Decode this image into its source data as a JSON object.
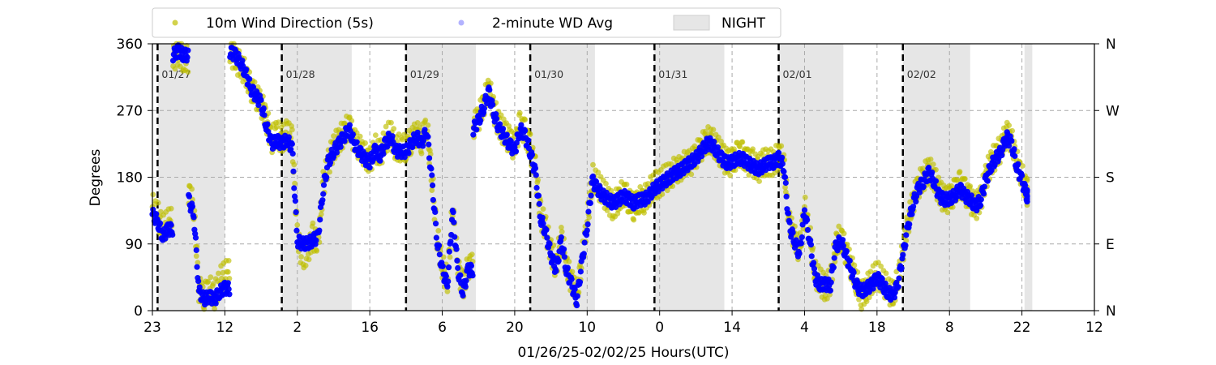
{
  "chart_data": {
    "type": "scatter",
    "xlabel": "01/26/25-02/02/25  Hours(UTC)",
    "ylabel": "Degrees",
    "ylim": [
      0,
      360
    ],
    "y_ticks": [
      0,
      90,
      180,
      270,
      360
    ],
    "y2_ticks": [
      "N",
      "E",
      "S",
      "W",
      "N"
    ],
    "x_ticks": [
      "23",
      "12",
      "2",
      "16",
      "6",
      "20",
      "10",
      "0",
      "14",
      "4",
      "18",
      "8",
      "22",
      "12"
    ],
    "grid": true,
    "grid_style": "dashed",
    "legend_position": "top-left",
    "legend": [
      {
        "label": "10m Wind Direction (5s)",
        "color": "#bfbf00",
        "kind": "point"
      },
      {
        "label": "2-minute WD Avg",
        "color": "#0000ff",
        "kind": "point"
      },
      {
        "label": "NIGHT",
        "color": "#d9d9d9",
        "kind": "shade"
      }
    ],
    "x_range_hours": [
      0,
      182
    ],
    "day_markers": [
      {
        "label": "01/27",
        "hour": 1
      },
      {
        "label": "01/28",
        "hour": 25
      },
      {
        "label": "01/29",
        "hour": 49
      },
      {
        "label": "01/30",
        "hour": 73
      },
      {
        "label": "01/31",
        "hour": 97
      },
      {
        "label": "02/01",
        "hour": 121
      },
      {
        "label": "02/02",
        "hour": 145
      }
    ],
    "night_periods_hours": [
      [
        1,
        14
      ],
      [
        25,
        38.5
      ],
      [
        49,
        62.5
      ],
      [
        73,
        85.5
      ],
      [
        97,
        110.5
      ],
      [
        121,
        133.5
      ],
      [
        145,
        158
      ],
      [
        168.5,
        170
      ]
    ],
    "series": [
      {
        "name": "10m Wind Direction (5s)",
        "color": "#bfbf00",
        "x_hours": [
          0,
          1,
          2,
          3,
          4,
          5,
          6,
          7,
          8,
          9,
          10,
          11,
          12,
          13,
          14,
          15,
          16,
          17,
          18,
          19,
          20,
          21,
          22,
          23,
          24,
          25,
          26,
          27,
          28,
          29,
          30,
          31,
          32,
          33,
          34,
          35,
          36,
          37,
          38,
          39,
          40,
          41,
          42,
          43,
          44,
          45,
          46,
          47,
          48,
          49,
          50,
          51,
          52,
          53,
          54,
          55,
          56,
          57,
          58,
          59,
          60,
          61,
          62,
          63,
          64,
          65,
          66,
          67,
          68,
          69,
          70,
          71,
          72,
          73,
          74,
          75,
          76,
          77,
          78,
          79,
          80,
          81,
          82,
          83,
          84,
          85,
          86,
          87,
          88,
          89,
          90,
          91,
          92,
          93,
          94,
          95,
          96,
          97,
          98,
          99,
          100,
          101,
          102,
          103,
          104,
          105,
          106,
          107,
          108,
          109,
          110,
          111,
          112,
          113,
          114,
          115,
          116,
          117,
          118,
          119,
          120,
          121,
          122,
          123,
          124,
          125,
          126,
          127,
          128,
          129,
          130,
          131,
          132,
          133,
          134,
          135,
          136,
          137,
          138,
          139,
          140,
          141,
          142,
          143,
          144,
          145,
          146,
          147,
          148,
          149,
          150,
          151,
          152,
          153,
          154,
          155,
          156,
          157,
          158,
          159,
          160,
          161,
          162,
          163,
          164,
          165,
          166,
          167,
          168,
          169
        ],
        "y_deg": [
          140,
          130,
          110,
          120,
          340,
          350,
          340,
          160,
          140,
          30,
          20,
          30,
          20,
          40,
          50,
          350,
          340,
          330,
          320,
          300,
          290,
          280,
          260,
          230,
          240,
          230,
          240,
          230,
          100,
          70,
          80,
          100,
          90,
          170,
          200,
          220,
          230,
          240,
          250,
          230,
          220,
          210,
          200,
          220,
          210,
          230,
          240,
          220,
          220,
          220,
          230,
          240,
          230,
          250,
          180,
          100,
          60,
          40,
          140,
          60,
          30,
          60,
          250,
          260,
          280,
          300,
          270,
          250,
          240,
          230,
          220,
          250,
          240,
          220,
          190,
          130,
          110,
          80,
          60,
          100,
          60,
          40,
          20,
          70,
          120,
          180,
          170,
          160,
          150,
          140,
          150,
          160,
          150,
          140,
          150,
          150,
          160,
          170,
          170,
          180,
          180,
          190,
          190,
          200,
          200,
          210,
          220,
          230,
          230,
          220,
          210,
          200,
          200,
          210,
          210,
          200,
          200,
          190,
          200,
          200,
          200,
          210,
          200,
          120,
          100,
          80,
          140,
          100,
          50,
          40,
          30,
          40,
          90,
          100,
          80,
          60,
          40,
          20,
          30,
          40,
          50,
          40,
          30,
          20,
          40,
          80,
          120,
          150,
          170,
          180,
          190,
          180,
          160,
          150,
          150,
          160,
          170,
          160,
          150,
          140,
          150,
          180,
          200,
          210,
          220,
          240,
          230,
          200,
          180,
          160
        ]
      },
      {
        "name": "2-minute WD Avg",
        "color": "#0000ff",
        "x_hours": [
          0,
          1,
          2,
          3,
          4,
          5,
          6,
          7,
          8,
          9,
          10,
          11,
          12,
          13,
          14,
          15,
          16,
          17,
          18,
          19,
          20,
          21,
          22,
          23,
          24,
          25,
          26,
          27,
          28,
          29,
          30,
          31,
          32,
          33,
          34,
          35,
          36,
          37,
          38,
          39,
          40,
          41,
          42,
          43,
          44,
          45,
          46,
          47,
          48,
          49,
          50,
          51,
          52,
          53,
          54,
          55,
          56,
          57,
          58,
          59,
          60,
          61,
          62,
          63,
          64,
          65,
          66,
          67,
          68,
          69,
          70,
          71,
          72,
          73,
          74,
          75,
          76,
          77,
          78,
          79,
          80,
          81,
          82,
          83,
          84,
          85,
          86,
          87,
          88,
          89,
          90,
          91,
          92,
          93,
          94,
          95,
          96,
          97,
          98,
          99,
          100,
          101,
          102,
          103,
          104,
          105,
          106,
          107,
          108,
          109,
          110,
          111,
          112,
          113,
          114,
          115,
          116,
          117,
          118,
          119,
          120,
          121,
          122,
          123,
          124,
          125,
          126,
          127,
          128,
          129,
          130,
          131,
          132,
          133,
          134,
          135,
          136,
          137,
          138,
          139,
          140,
          141,
          142,
          143,
          144,
          145,
          146,
          147,
          148,
          149,
          150,
          151,
          152,
          153,
          154,
          155,
          156,
          157,
          158,
          159,
          160,
          161,
          162,
          163,
          164,
          165,
          166,
          167,
          168,
          169
        ],
        "y_deg": [
          130,
          120,
          100,
          110,
          345,
          350,
          345,
          150,
          130,
          25,
          15,
          20,
          15,
          25,
          30,
          350,
          345,
          335,
          320,
          300,
          290,
          280,
          250,
          225,
          230,
          225,
          230,
          220,
          95,
          90,
          90,
          95,
          100,
          165,
          200,
          215,
          225,
          235,
          245,
          225,
          215,
          205,
          200,
          215,
          210,
          225,
          235,
          215,
          215,
          215,
          225,
          235,
          225,
          245,
          175,
          95,
          55,
          35,
          135,
          55,
          25,
          55,
          245,
          255,
          275,
          295,
          265,
          245,
          235,
          225,
          215,
          245,
          235,
          215,
          185,
          125,
          105,
          75,
          55,
          95,
          55,
          35,
          15,
          65,
          115,
          175,
          165,
          155,
          150,
          145,
          150,
          155,
          150,
          145,
          150,
          150,
          155,
          165,
          170,
          175,
          180,
          185,
          190,
          195,
          200,
          205,
          215,
          225,
          225,
          215,
          205,
          200,
          200,
          205,
          205,
          200,
          195,
          190,
          195,
          200,
          200,
          205,
          195,
          115,
          95,
          75,
          135,
          95,
          45,
          35,
          35,
          35,
          85,
          95,
          75,
          55,
          35,
          25,
          30,
          35,
          45,
          35,
          25,
          20,
          35,
          75,
          115,
          145,
          165,
          175,
          185,
          175,
          155,
          150,
          150,
          155,
          165,
          155,
          150,
          140,
          150,
          175,
          195,
          205,
          215,
          235,
          225,
          195,
          175,
          155
        ]
      }
    ]
  }
}
